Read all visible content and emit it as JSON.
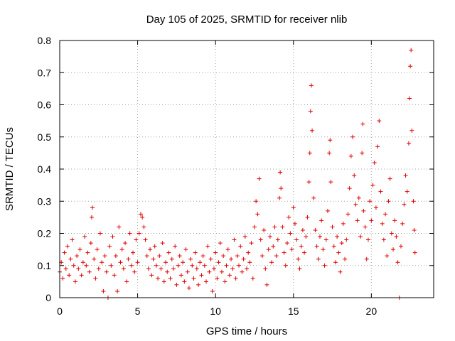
{
  "chart_data": {
    "type": "scatter",
    "title": "Day 105 of 2025, SRMTID for receiver nlib",
    "xlabel": "GPS time / hours",
    "ylabel": "SRMTID / TECUs",
    "xlim": [
      0,
      24
    ],
    "ylim": [
      0,
      0.8
    ],
    "x_ticks": [
      0,
      5,
      10,
      15,
      20
    ],
    "y_ticks": [
      0,
      0.1,
      0.2,
      0.3,
      0.4,
      0.5,
      0.6,
      0.7,
      0.8
    ],
    "x_tick_labels": [
      "0",
      "5",
      "10",
      "15",
      "20"
    ],
    "y_tick_labels": [
      "0",
      "0.1",
      "0.2",
      "0.3",
      "0.4",
      "0.5",
      "0.6",
      "0.7",
      "0.8"
    ],
    "grid": true,
    "marker": "+",
    "color": "#e00000",
    "series": [
      {
        "name": "SRMTID",
        "points": [
          [
            0.0,
            0.08
          ],
          [
            0.1,
            0.11
          ],
          [
            0.2,
            0.06
          ],
          [
            0.3,
            0.14
          ],
          [
            0.4,
            0.09
          ],
          [
            0.5,
            0.16
          ],
          [
            0.6,
            0.07
          ],
          [
            0.7,
            0.12
          ],
          [
            0.8,
            0.18
          ],
          [
            0.9,
            0.1
          ],
          [
            1.0,
            0.05
          ],
          [
            1.1,
            0.13
          ],
          [
            1.2,
            0.09
          ],
          [
            1.3,
            0.15
          ],
          [
            1.4,
            0.07
          ],
          [
            1.5,
            0.11
          ],
          [
            1.6,
            0.19
          ],
          [
            1.7,
            0.1
          ],
          [
            1.8,
            0.14
          ],
          [
            1.9,
            0.08
          ],
          [
            2.0,
            0.17
          ],
          [
            2.05,
            0.25
          ],
          [
            2.1,
            0.28
          ],
          [
            2.2,
            0.12
          ],
          [
            2.3,
            0.06
          ],
          [
            2.4,
            0.15
          ],
          [
            2.5,
            0.09
          ],
          [
            2.6,
            0.2
          ],
          [
            2.7,
            0.11
          ],
          [
            2.8,
            0.02
          ],
          [
            2.9,
            0.13
          ],
          [
            3.0,
            0.08
          ],
          [
            3.1,
            0.0
          ],
          [
            3.2,
            0.16
          ],
          [
            3.3,
            0.1
          ],
          [
            3.4,
            0.19
          ],
          [
            3.5,
            0.07
          ],
          [
            3.6,
            0.13
          ],
          [
            3.7,
            0.02
          ],
          [
            3.8,
            0.22
          ],
          [
            3.9,
            0.11
          ],
          [
            4.0,
            0.15
          ],
          [
            4.1,
            0.09
          ],
          [
            4.2,
            0.17
          ],
          [
            4.3,
            0.05
          ],
          [
            4.4,
            0.12
          ],
          [
            4.5,
            0.2
          ],
          [
            4.6,
            0.1
          ],
          [
            4.7,
            0.14
          ],
          [
            4.8,
            0.08
          ],
          [
            4.9,
            0.18
          ],
          [
            5.0,
            0.11
          ],
          [
            5.1,
            0.2
          ],
          [
            5.2,
            0.26
          ],
          [
            5.3,
            0.25
          ],
          [
            5.4,
            0.22
          ],
          [
            5.5,
            0.18
          ],
          [
            5.6,
            0.13
          ],
          [
            5.7,
            0.09
          ],
          [
            5.8,
            0.15
          ],
          [
            5.9,
            0.07
          ],
          [
            6.0,
            0.12
          ],
          [
            6.1,
            0.16
          ],
          [
            6.2,
            0.1
          ],
          [
            6.3,
            0.06
          ],
          [
            6.4,
            0.13
          ],
          [
            6.5,
            0.09
          ],
          [
            6.6,
            0.17
          ],
          [
            6.7,
            0.05
          ],
          [
            6.8,
            0.11
          ],
          [
            6.9,
            0.08
          ],
          [
            7.0,
            0.14
          ],
          [
            7.1,
            0.06
          ],
          [
            7.2,
            0.12
          ],
          [
            7.3,
            0.09
          ],
          [
            7.4,
            0.16
          ],
          [
            7.5,
            0.04
          ],
          [
            7.6,
            0.1
          ],
          [
            7.7,
            0.13
          ],
          [
            7.8,
            0.07
          ],
          [
            7.9,
            0.11
          ],
          [
            8.0,
            0.05
          ],
          [
            8.1,
            0.15
          ],
          [
            8.2,
            0.08
          ],
          [
            8.3,
            0.03
          ],
          [
            8.4,
            0.12
          ],
          [
            8.5,
            0.1
          ],
          [
            8.6,
            0.06
          ],
          [
            8.7,
            0.14
          ],
          [
            8.8,
            0.09
          ],
          [
            8.9,
            0.04
          ],
          [
            9.0,
            0.11
          ],
          [
            9.1,
            0.07
          ],
          [
            9.2,
            0.13
          ],
          [
            9.3,
            0.1
          ],
          [
            9.4,
            0.05
          ],
          [
            9.5,
            0.16
          ],
          [
            9.6,
            0.08
          ],
          [
            9.7,
            0.12
          ],
          [
            9.8,
            0.02
          ],
          [
            9.9,
            0.09
          ],
          [
            10.0,
            0.14
          ],
          [
            10.1,
            0.06
          ],
          [
            10.2,
            0.11
          ],
          [
            10.3,
            0.17
          ],
          [
            10.4,
            0.08
          ],
          [
            10.5,
            0.13
          ],
          [
            10.6,
            0.05
          ],
          [
            10.7,
            0.1
          ],
          [
            10.8,
            0.15
          ],
          [
            10.9,
            0.07
          ],
          [
            11.0,
            0.12
          ],
          [
            11.1,
            0.09
          ],
          [
            11.2,
            0.18
          ],
          [
            11.3,
            0.06
          ],
          [
            11.4,
            0.13
          ],
          [
            11.5,
            0.1
          ],
          [
            11.6,
            0.16
          ],
          [
            11.7,
            0.08
          ],
          [
            11.8,
            0.12
          ],
          [
            11.9,
            0.19
          ],
          [
            12.0,
            0.09
          ],
          [
            12.1,
            0.14
          ],
          [
            12.2,
            0.11
          ],
          [
            12.3,
            0.17
          ],
          [
            12.4,
            0.06
          ],
          [
            12.5,
            0.22
          ],
          [
            12.6,
            0.3
          ],
          [
            12.7,
            0.26
          ],
          [
            12.8,
            0.37
          ],
          [
            12.9,
            0.18
          ],
          [
            13.0,
            0.13
          ],
          [
            13.1,
            0.21
          ],
          [
            13.2,
            0.09
          ],
          [
            13.3,
            0.04
          ],
          [
            13.4,
            0.15
          ],
          [
            13.5,
            0.19
          ],
          [
            13.6,
            0.11
          ],
          [
            13.7,
            0.16
          ],
          [
            13.8,
            0.22
          ],
          [
            13.9,
            0.13
          ],
          [
            14.0,
            0.18
          ],
          [
            14.1,
            0.31
          ],
          [
            14.15,
            0.39
          ],
          [
            14.2,
            0.34
          ],
          [
            14.3,
            0.22
          ],
          [
            14.4,
            0.14
          ],
          [
            14.5,
            0.1
          ],
          [
            14.6,
            0.17
          ],
          [
            14.7,
            0.25
          ],
          [
            14.8,
            0.2
          ],
          [
            14.9,
            0.15
          ],
          [
            15.0,
            0.28
          ],
          [
            15.1,
            0.23
          ],
          [
            15.2,
            0.18
          ],
          [
            15.3,
            0.12
          ],
          [
            15.4,
            0.09
          ],
          [
            15.5,
            0.16
          ],
          [
            15.6,
            0.21
          ],
          [
            15.7,
            0.14
          ],
          [
            15.8,
            0.19
          ],
          [
            15.9,
            0.25
          ],
          [
            16.0,
            0.36
          ],
          [
            16.05,
            0.45
          ],
          [
            16.1,
            0.58
          ],
          [
            16.15,
            0.66
          ],
          [
            16.2,
            0.52
          ],
          [
            16.3,
            0.31
          ],
          [
            16.4,
            0.21
          ],
          [
            16.5,
            0.16
          ],
          [
            16.6,
            0.12
          ],
          [
            16.7,
            0.19
          ],
          [
            16.8,
            0.24
          ],
          [
            16.9,
            0.15
          ],
          [
            17.0,
            0.1
          ],
          [
            17.1,
            0.18
          ],
          [
            17.2,
            0.27
          ],
          [
            17.3,
            0.45
          ],
          [
            17.35,
            0.49
          ],
          [
            17.4,
            0.36
          ],
          [
            17.5,
            0.22
          ],
          [
            17.6,
            0.16
          ],
          [
            17.7,
            0.11
          ],
          [
            17.8,
            0.19
          ],
          [
            17.9,
            0.14
          ],
          [
            18.0,
            0.08
          ],
          [
            18.1,
            0.17
          ],
          [
            18.2,
            0.23
          ],
          [
            18.3,
            0.12
          ],
          [
            18.4,
            0.18
          ],
          [
            18.5,
            0.26
          ],
          [
            18.6,
            0.34
          ],
          [
            18.7,
            0.44
          ],
          [
            18.8,
            0.5
          ],
          [
            18.9,
            0.38
          ],
          [
            19.0,
            0.29
          ],
          [
            19.1,
            0.24
          ],
          [
            19.2,
            0.31
          ],
          [
            19.3,
            0.19
          ],
          [
            19.4,
            0.45
          ],
          [
            19.45,
            0.54
          ],
          [
            19.5,
            0.27
          ],
          [
            19.6,
            0.22
          ],
          [
            19.7,
            0.12
          ],
          [
            19.8,
            0.18
          ],
          [
            19.9,
            0.3
          ],
          [
            20.0,
            0.24
          ],
          [
            20.1,
            0.35
          ],
          [
            20.2,
            0.42
          ],
          [
            20.3,
            0.28
          ],
          [
            20.4,
            0.47
          ],
          [
            20.5,
            0.55
          ],
          [
            20.6,
            0.33
          ],
          [
            20.7,
            0.23
          ],
          [
            20.8,
            0.18
          ],
          [
            20.9,
            0.26
          ],
          [
            21.0,
            0.13
          ],
          [
            21.1,
            0.3
          ],
          [
            21.2,
            0.37
          ],
          [
            21.3,
            0.2
          ],
          [
            21.4,
            0.15
          ],
          [
            21.5,
            0.24
          ],
          [
            21.6,
            0.19
          ],
          [
            21.7,
            0.11
          ],
          [
            21.8,
            0.0
          ],
          [
            21.9,
            0.16
          ],
          [
            22.0,
            0.23
          ],
          [
            22.1,
            0.29
          ],
          [
            22.2,
            0.38
          ],
          [
            22.3,
            0.33
          ],
          [
            22.4,
            0.48
          ],
          [
            22.45,
            0.62
          ],
          [
            22.5,
            0.72
          ],
          [
            22.55,
            0.77
          ],
          [
            22.6,
            0.52
          ],
          [
            22.7,
            0.3
          ],
          [
            22.75,
            0.21
          ],
          [
            22.8,
            0.14
          ]
        ]
      }
    ]
  }
}
